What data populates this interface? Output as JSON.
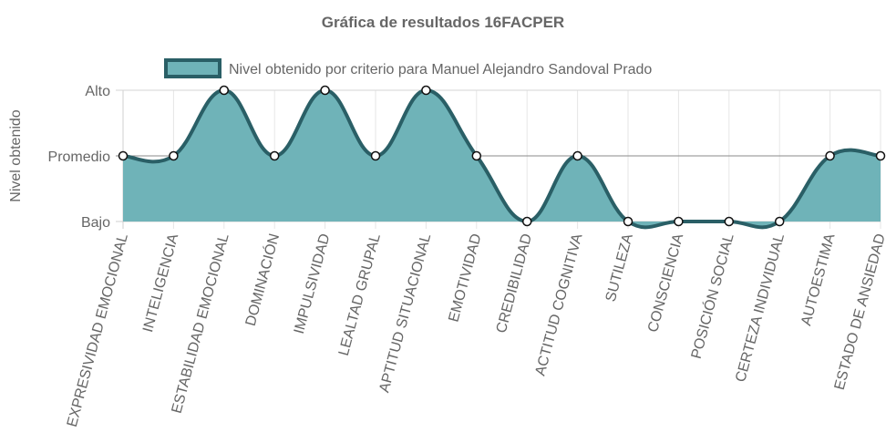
{
  "chart_data": {
    "type": "area",
    "title": "Gráfica de resultados 16FACPER",
    "ylabel": "Nivel obtenido",
    "xlabel": "",
    "y_ticks": [
      "Bajo",
      "Promedio",
      "Alto"
    ],
    "ylim": [
      0,
      2
    ],
    "grid": true,
    "legend_position": "top",
    "categories": [
      "EXPRESIVIDAD EMOCIONAL",
      "INTELIGENCIA",
      "ESTABILIDAD EMOCIONAL",
      "DOMINACIÓN",
      "IMPULSIVIDAD",
      "LEALTAD GRUPAL",
      "APTITUD SITUACIONAL",
      "EMOTIVIDAD",
      "CREDIBILIDAD",
      "ACTITUD COGNITIVA",
      "SUTILEZA",
      "CONSCIENCIA",
      "POSICIÓN SOCIAL",
      "CERTEZA INDIVIDUAL",
      "AUTOESTIMA",
      "ESTADO DE ANSIEDAD"
    ],
    "series": [
      {
        "name": "Nivel obtenido por criterio para Manuel Alejandro Sandoval Prado",
        "values": [
          1,
          1,
          2,
          1,
          2,
          1,
          2,
          1,
          0,
          1,
          0,
          0,
          0,
          0,
          1,
          1
        ],
        "fill_color": "#6fb3b8",
        "line_color": "#2a5f66"
      }
    ]
  }
}
